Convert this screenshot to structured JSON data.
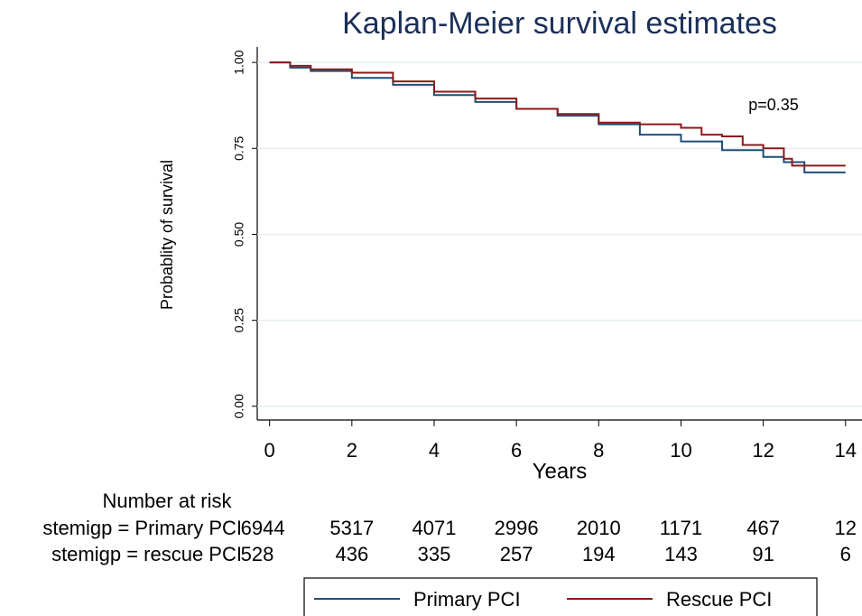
{
  "chart_data": {
    "type": "step",
    "title": "Kaplan-Meier survival estimates",
    "x_label": "Years",
    "y_label": "Probablity of survival",
    "annotation": "p=0.35",
    "xlim": [
      -0.3,
      14.4
    ],
    "xticks": [
      0,
      2,
      4,
      6,
      8,
      10,
      12,
      14
    ],
    "ylim": [
      -0.04,
      1.045
    ],
    "yticks": [
      {
        "value": 0,
        "label": "0.00"
      },
      0.25,
      {
        "value": 0.5,
        "label": "0.50"
      },
      0.75,
      {
        "value": 1,
        "label": "1.00"
      }
    ],
    "grid": true,
    "series": [
      {
        "name": "Primary PCI",
        "color": "#1f4e79",
        "x": [
          0,
          0.5,
          1,
          2,
          3,
          4,
          5,
          6,
          7,
          8,
          9,
          10,
          11,
          12,
          12.5,
          13,
          14
        ],
        "values": [
          1.0,
          0.985,
          0.975,
          0.955,
          0.935,
          0.905,
          0.885,
          0.865,
          0.845,
          0.82,
          0.79,
          0.77,
          0.745,
          0.725,
          0.71,
          0.68,
          0.68
        ]
      },
      {
        "name": "Rescue PCI",
        "color": "#8b1a1a",
        "x": [
          0,
          0.5,
          1,
          2,
          3,
          4,
          5,
          6,
          7,
          8,
          9,
          10,
          10.5,
          11,
          11.5,
          12,
          12.5,
          12.7,
          14
        ],
        "values": [
          1.0,
          0.99,
          0.98,
          0.97,
          0.945,
          0.915,
          0.895,
          0.865,
          0.85,
          0.825,
          0.82,
          0.81,
          0.79,
          0.785,
          0.76,
          0.75,
          0.72,
          0.7,
          0.7
        ]
      }
    ],
    "risk_table": {
      "title": "Number at risk",
      "rows": [
        {
          "label": "stemigp = Primary PCI",
          "values": [
            6944,
            5317,
            4071,
            2996,
            2010,
            1171,
            467,
            12
          ]
        },
        {
          "label": "stemigp = rescue PCI",
          "values": [
            528,
            436,
            335,
            257,
            194,
            143,
            91,
            6
          ]
        }
      ]
    }
  }
}
